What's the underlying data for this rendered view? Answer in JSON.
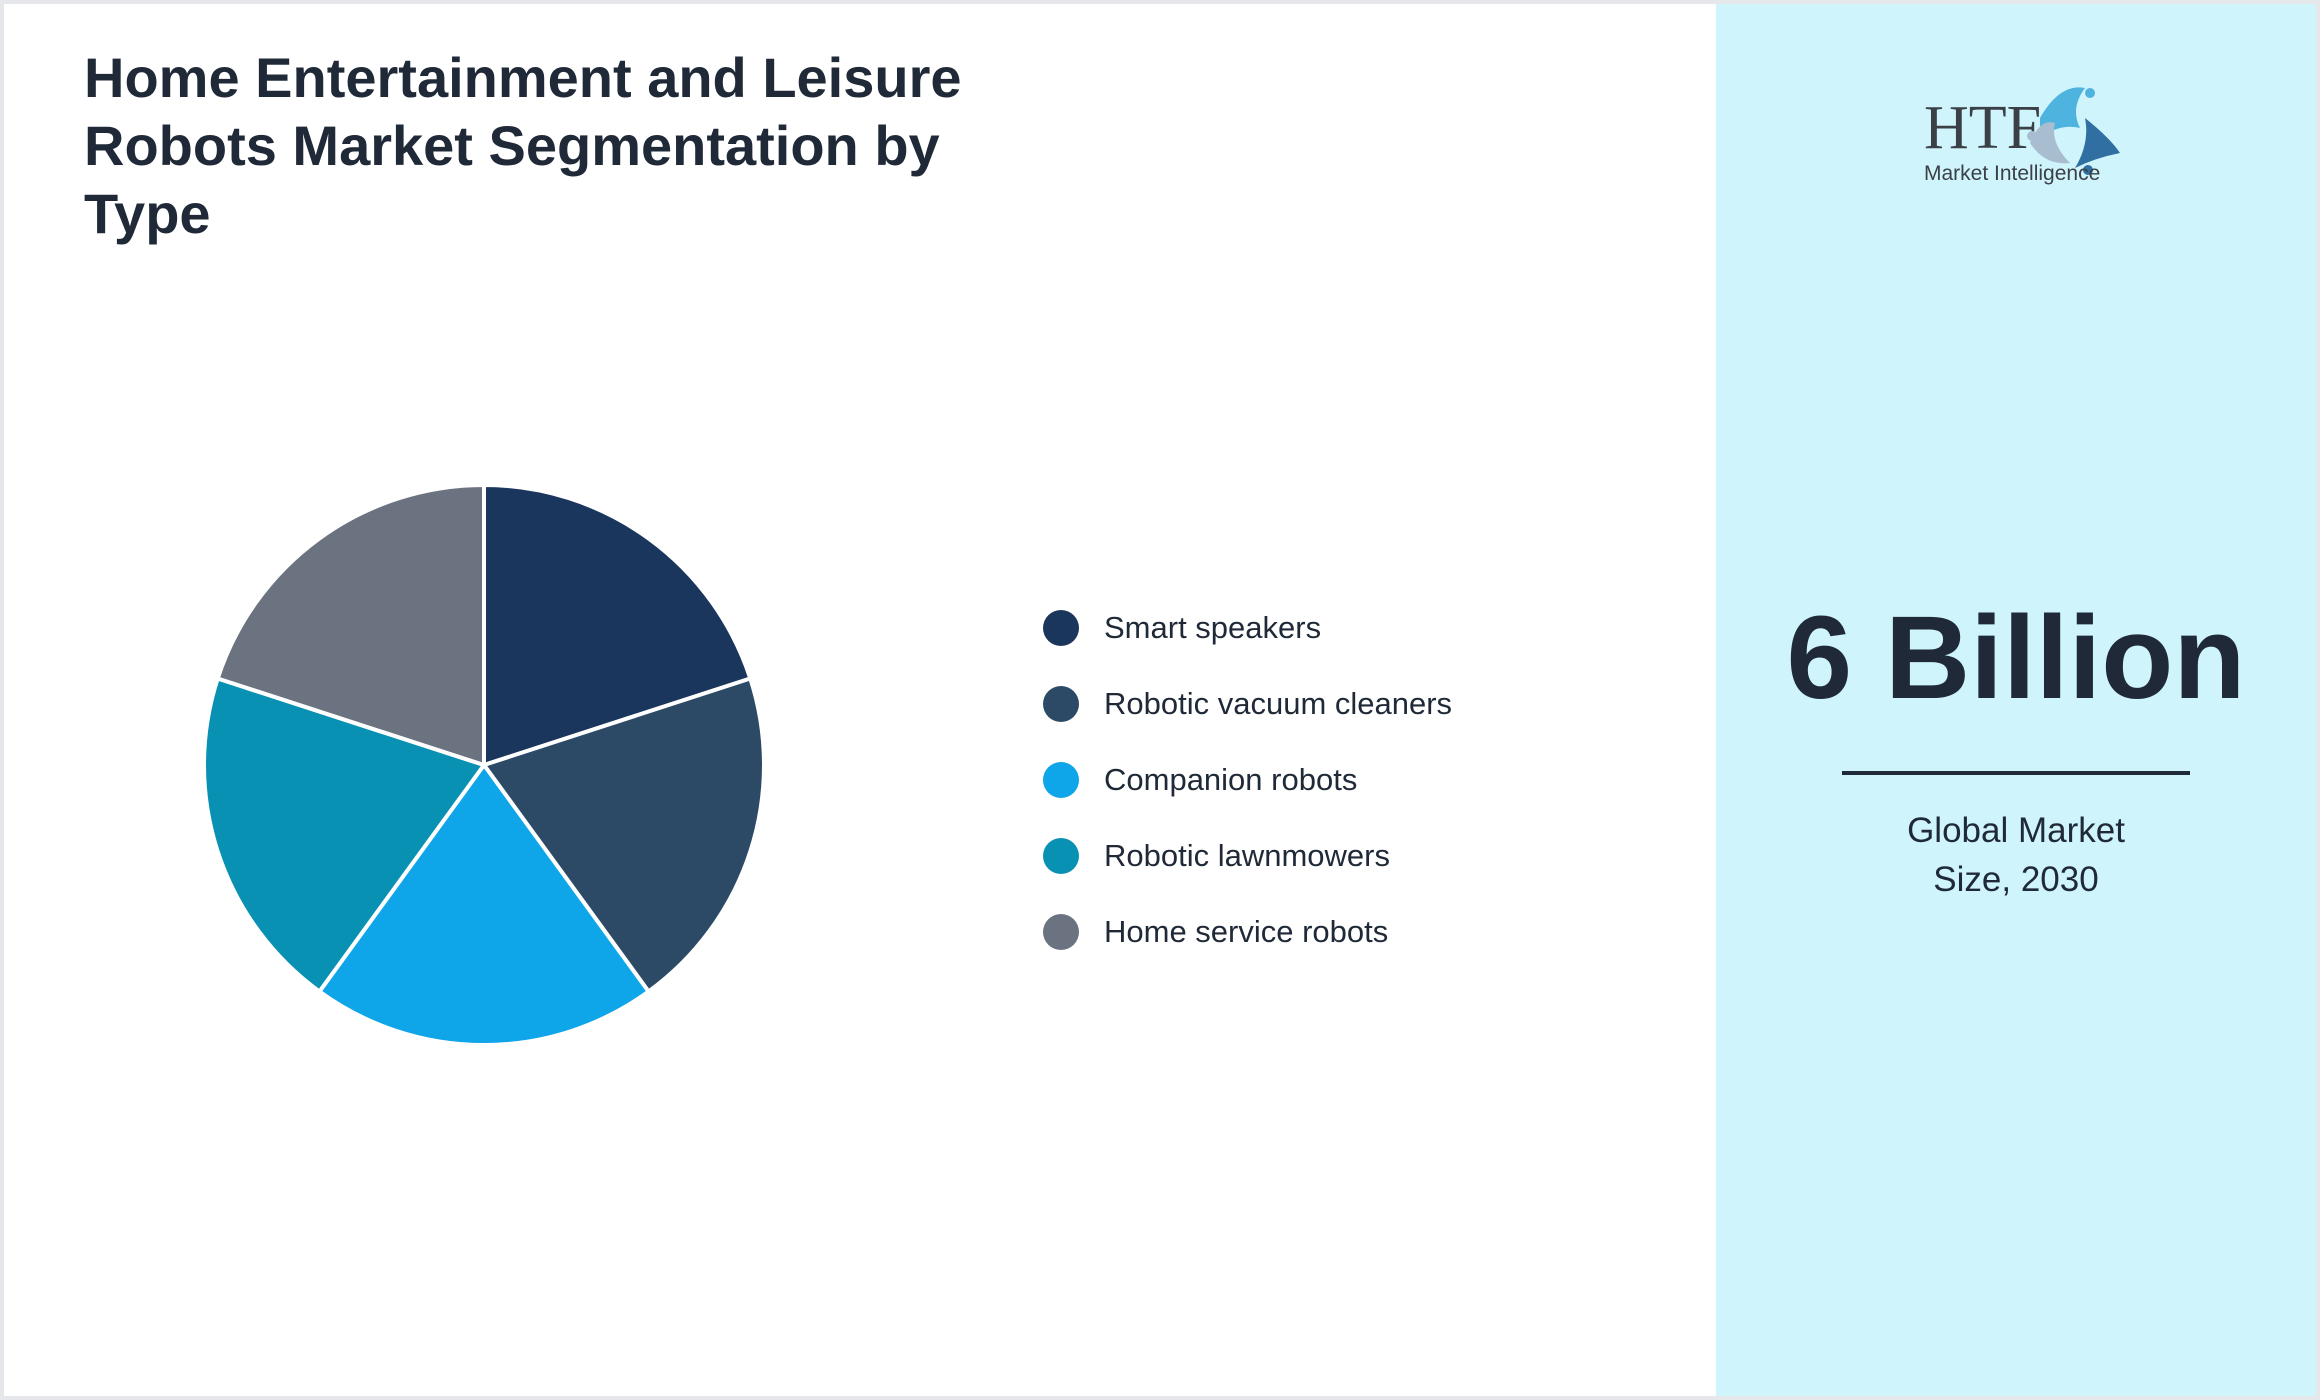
{
  "title": "Home Entertainment and Leisure Robots Market Segmentation by Type",
  "chart_data": {
    "type": "pie",
    "title": "Home Entertainment and Leisure Robots Market Segmentation by Type",
    "categories": [
      "Smart speakers",
      "Robotic vacuum cleaners",
      "Companion robots",
      "Robotic lawnmowers",
      "Home service robots"
    ],
    "values": [
      20,
      20,
      20,
      20,
      20
    ],
    "colors": [
      "#1a365d",
      "#2c4a66",
      "#0ea5e9",
      "#0891b2",
      "#6b7280"
    ],
    "legend_position": "right"
  },
  "market": {
    "value": "6 Billion",
    "label": "Global Market Size, 2030"
  },
  "logo": {
    "text_main": "HTF",
    "text_sub": "Market Intelligence"
  },
  "colors": {
    "panel_bg": "#cff4fc",
    "text": "#1f2937"
  }
}
